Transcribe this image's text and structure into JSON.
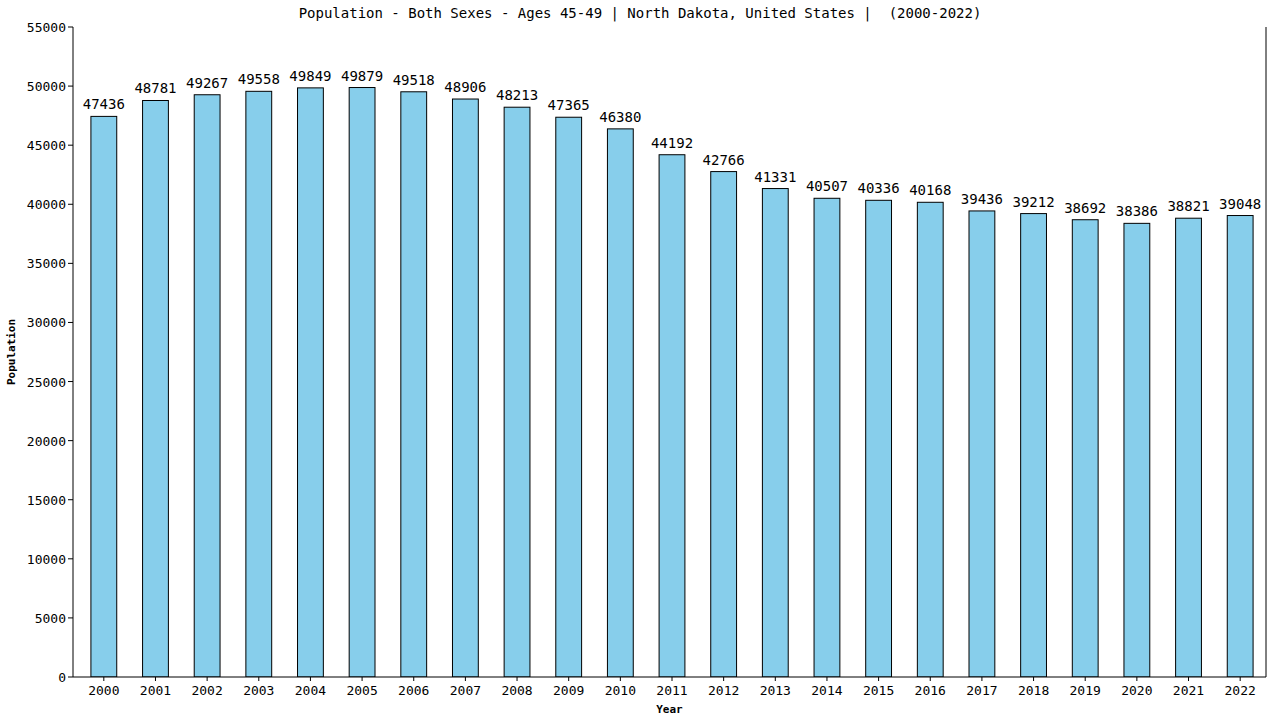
{
  "chart_data": {
    "type": "bar",
    "title": "Population - Both Sexes - Ages 45-49 | North Dakota, United States |  (2000-2022)",
    "x_label": "Year",
    "y_label": "Population",
    "categories": [
      "2000",
      "2001",
      "2002",
      "2003",
      "2004",
      "2005",
      "2006",
      "2007",
      "2008",
      "2009",
      "2010",
      "2011",
      "2012",
      "2013",
      "2014",
      "2015",
      "2016",
      "2017",
      "2018",
      "2019",
      "2020",
      "2021",
      "2022"
    ],
    "values": [
      47436,
      48781,
      49267,
      49558,
      49849,
      49879,
      49518,
      48906,
      48213,
      47365,
      46380,
      44192,
      42766,
      41331,
      40507,
      40336,
      40168,
      39436,
      39212,
      38692,
      38386,
      38821,
      39048
    ],
    "color": "#87ceeb",
    "ylim": [
      0,
      55000
    ],
    "yticks": [
      0,
      5000,
      10000,
      15000,
      20000,
      25000,
      30000,
      35000,
      40000,
      45000,
      50000,
      55000
    ],
    "grid": false,
    "data_labels": true
  }
}
